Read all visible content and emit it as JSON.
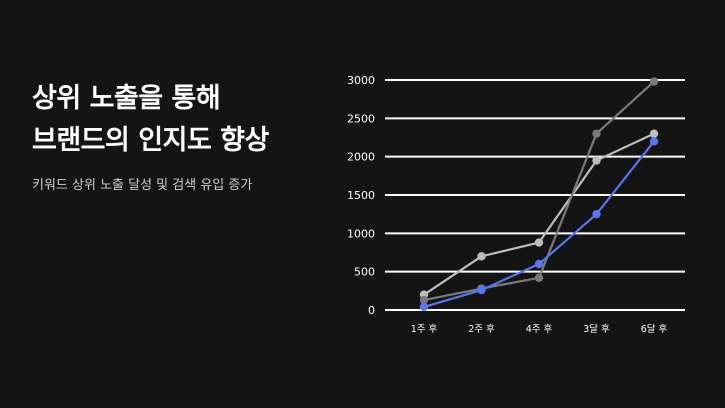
{
  "headline": {
    "line1": "상위 노출을 통해",
    "line2": "브랜드의 인지도 향상"
  },
  "subtitle": "키워드 상위 노출 달성 및 검색 유입 증가",
  "colors": {
    "background": "#141414",
    "gridline": "#ffffff",
    "text": "#ffffff",
    "series_blue": "#5b74f2",
    "series_gray": "#7a7a7a",
    "series_light": "#bdbdbd"
  },
  "chart_data": {
    "type": "line",
    "categories": [
      "1주 후",
      "2주 후",
      "4주 후",
      "3달 후",
      "6달 후"
    ],
    "ylim": [
      0,
      3000
    ],
    "yticks": [
      0,
      500,
      1000,
      1500,
      2000,
      2500,
      3000
    ],
    "ytick_labels": [
      "0",
      "500",
      "1000",
      "1500",
      "2000",
      "2500",
      "3000"
    ],
    "grid": true,
    "legend": "none",
    "series": [
      {
        "color": "#bdbdbd",
        "values": [
          200,
          700,
          880,
          1950,
          2300
        ]
      },
      {
        "color": "#7a7a7a",
        "values": [
          130,
          280,
          420,
          2300,
          2980
        ]
      },
      {
        "color": "#5b74f2",
        "values": [
          40,
          260,
          600,
          1250,
          2200
        ]
      }
    ]
  }
}
